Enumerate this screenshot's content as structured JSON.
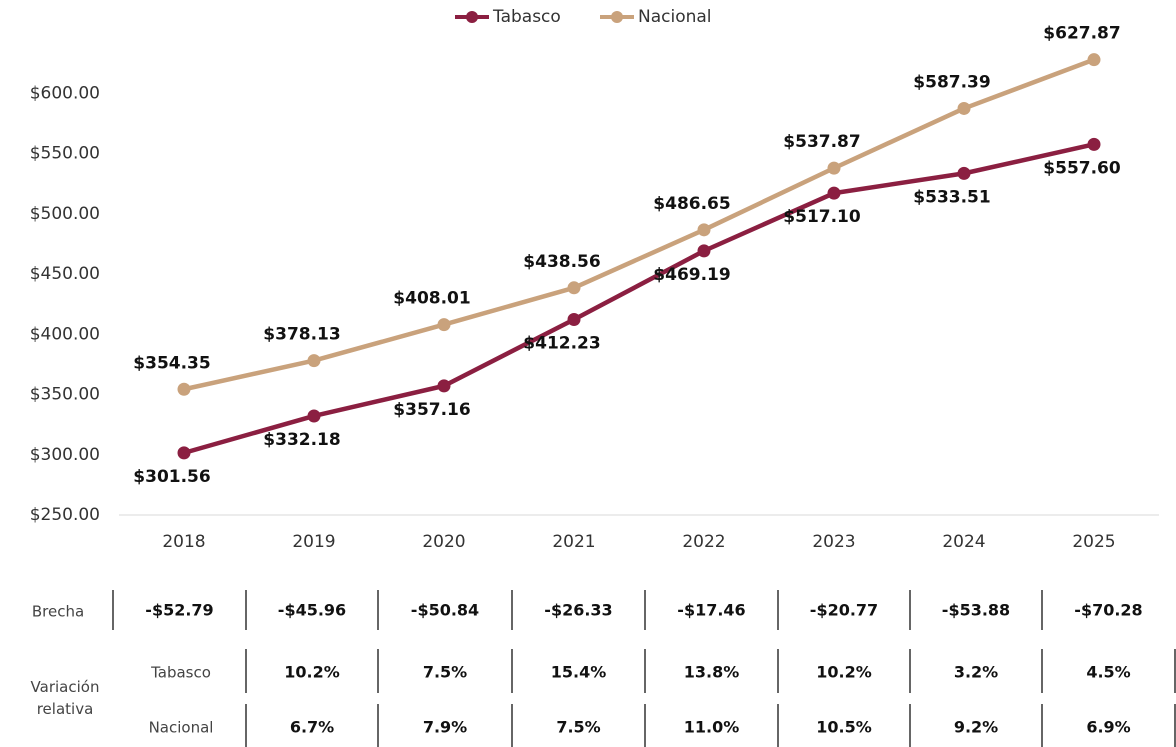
{
  "chart_data": {
    "type": "line",
    "categories": [
      "2018",
      "2019",
      "2020",
      "2021",
      "2022",
      "2023",
      "2024",
      "2025"
    ],
    "series": [
      {
        "name": "Tabasco",
        "color": "#8b1f41",
        "values": [
          301.56,
          332.18,
          357.16,
          412.23,
          469.19,
          517.1,
          533.51,
          557.6
        ],
        "value_labels": [
          "$301.56",
          "$332.18",
          "$357.16",
          "$412.23",
          "$469.19",
          "$517.10",
          "$533.51",
          "$557.60"
        ]
      },
      {
        "name": "Nacional",
        "color": "#c9a27c",
        "values": [
          354.35,
          378.13,
          408.01,
          438.56,
          486.65,
          537.87,
          587.39,
          627.87
        ],
        "value_labels": [
          "$354.35",
          "$378.13",
          "$408.01",
          "$438.56",
          "$486.65",
          "$537.87",
          "$587.39",
          "$627.87"
        ]
      }
    ],
    "ylim": [
      250,
      650
    ],
    "yticks": [
      {
        "value": 250,
        "label": "$250.00"
      },
      {
        "value": 300,
        "label": "$300.00"
      },
      {
        "value": 350,
        "label": "$350.00"
      },
      {
        "value": 400,
        "label": "$400.00"
      },
      {
        "value": 450,
        "label": "$450.00"
      },
      {
        "value": 500,
        "label": "$500.00"
      },
      {
        "value": 550,
        "label": "$550.00"
      },
      {
        "value": 600,
        "label": "$600.00"
      }
    ],
    "legend": "top",
    "grid": false
  },
  "table": {
    "brecha_label": "Brecha",
    "brecha": [
      "-$52.79",
      "-$45.96",
      "-$50.84",
      "-$26.33",
      "-$17.46",
      "-$20.77",
      "-$53.88",
      "-$70.28"
    ],
    "variacion_label": "Variación relativa",
    "rows": [
      {
        "name": "Tabasco",
        "values": [
          "10.2%",
          "7.5%",
          "15.4%",
          "13.8%",
          "10.2%",
          "3.2%",
          "4.5%"
        ]
      },
      {
        "name": "Nacional",
        "values": [
          "6.7%",
          "7.9%",
          "7.5%",
          "11.0%",
          "10.5%",
          "9.2%",
          "6.9%"
        ]
      }
    ]
  }
}
